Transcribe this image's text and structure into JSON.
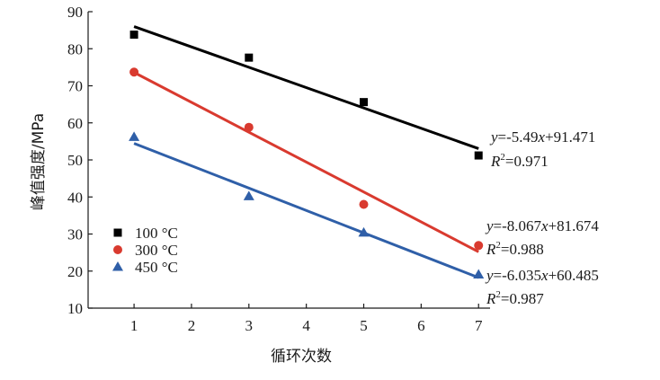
{
  "chart_data": {
    "type": "scatter",
    "xlabel": "循环次数",
    "ylabel": "峰值强度/MPa",
    "xlim": [
      0.2,
      7.2
    ],
    "ylim": [
      10,
      90
    ],
    "xticks": [
      1,
      2,
      3,
      4,
      5,
      6,
      7
    ],
    "yticks": [
      10,
      20,
      30,
      40,
      50,
      60,
      70,
      80,
      90
    ],
    "legend_position": "lower-left",
    "grid": false,
    "series": [
      {
        "name": "100 °C",
        "marker": "square",
        "color": "#000000",
        "x": [
          1,
          3,
          5,
          7
        ],
        "y": [
          83.8,
          77.6,
          65.6,
          51.2
        ],
        "fit": {
          "slope": -5.49,
          "intercept": 91.471,
          "x_range": [
            1,
            7
          ]
        },
        "equation": {
          "lhs": "y",
          "rhs_a": "=-5.49",
          "var": "x",
          "rhs_b": "+91.471",
          "r2_label": "R",
          "r2_sup": "2",
          "r2_value": "=0.971"
        }
      },
      {
        "name": "300 °C",
        "marker": "circle",
        "color": "#d93a2f",
        "x": [
          1,
          3,
          5,
          7
        ],
        "y": [
          73.7,
          58.8,
          38.0,
          26.9
        ],
        "fit": {
          "slope": -8.067,
          "intercept": 81.674,
          "x_range": [
            1,
            7
          ]
        },
        "equation": {
          "lhs": "y",
          "rhs_a": "=-8.067",
          "var": "x",
          "rhs_b": "+81.674",
          "r2_label": "R",
          "r2_sup": "2",
          "r2_value": "=0.988"
        }
      },
      {
        "name": "450 °C",
        "marker": "triangle",
        "color": "#2f5fa8",
        "x": [
          1,
          3,
          5,
          7
        ],
        "y": [
          56.2,
          40.2,
          30.4,
          19.1
        ],
        "fit": {
          "slope": -6.035,
          "intercept": 60.485,
          "x_range": [
            1,
            7
          ]
        },
        "equation": {
          "lhs": "y",
          "rhs_a": "=-6.035",
          "var": "x",
          "rhs_b": "+60.485",
          "r2_label": "R",
          "r2_sup": "2",
          "r2_value": "=0.987"
        }
      }
    ]
  }
}
